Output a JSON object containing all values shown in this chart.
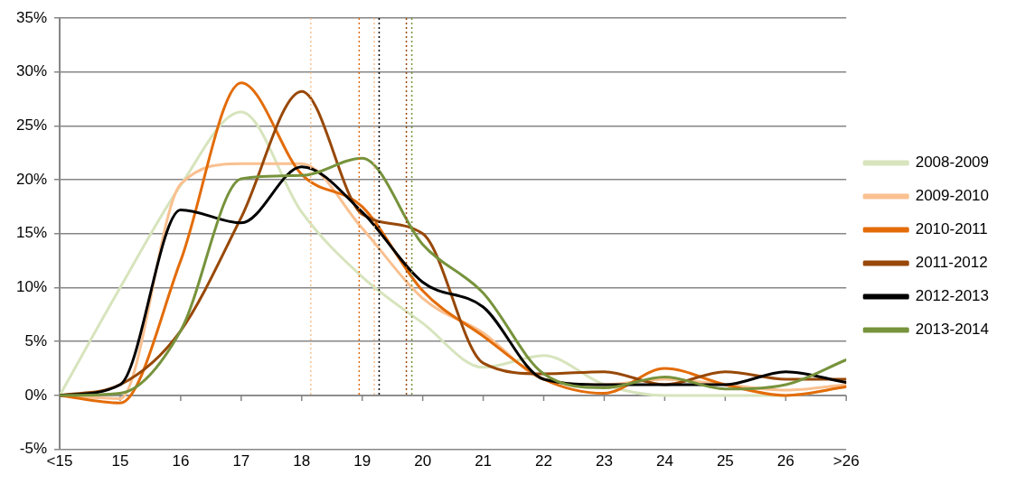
{
  "chart_data": {
    "type": "line",
    "x": [
      14,
      15,
      16,
      17,
      18,
      19,
      20,
      21,
      22,
      23,
      24,
      25,
      26,
      27
    ],
    "xlim": [
      14,
      27
    ],
    "xticks": [
      {
        "value": 14,
        "label": "<15"
      },
      15,
      16,
      17,
      18,
      19,
      20,
      21,
      22,
      23,
      24,
      25,
      26,
      {
        "value": 27,
        "label": ">26"
      }
    ],
    "ylim": [
      -5,
      35
    ],
    "yticks": [
      {
        "value": -5,
        "label": "-5%"
      },
      {
        "value": 0,
        "label": "0%"
      },
      {
        "value": 5,
        "label": "5%"
      },
      {
        "value": 10,
        "label": "10%"
      },
      {
        "value": 15,
        "label": "15%"
      },
      {
        "value": 20,
        "label": "20%"
      },
      {
        "value": 25,
        "label": "25%"
      },
      {
        "value": 30,
        "label": "30%"
      },
      {
        "value": 35,
        "label": "35%"
      }
    ],
    "grid": "y",
    "legend": "right",
    "marker": "none",
    "line_style": "solid",
    "series": [
      {
        "name": "2008-2009",
        "color": "#d7e4bd",
        "values": [
          0,
          10,
          19.5,
          26.3,
          17,
          11,
          6.7,
          2.6,
          3.7,
          1,
          0,
          0,
          0,
          0.8
        ]
      },
      {
        "name": "2009-2010",
        "color": "#fac090",
        "values": [
          0,
          -0.3,
          19.6,
          21.5,
          21.5,
          15.5,
          9,
          5.8,
          1.5,
          1,
          1.5,
          1,
          0.5,
          1
        ]
      },
      {
        "name": "2010-2011",
        "color": "#e36c09",
        "values": [
          0,
          -0.7,
          12.5,
          29,
          20.5,
          17.5,
          9.7,
          5.5,
          1.5,
          0.2,
          2.5,
          1,
          0,
          0.8
        ]
      },
      {
        "name": "2011-2012",
        "color": "#984807",
        "values": [
          0,
          1,
          6,
          16.5,
          28.2,
          16.8,
          15,
          3,
          2,
          2.2,
          1,
          2.2,
          1.5,
          1.5
        ]
      },
      {
        "name": "2012-2013",
        "color": "#000000",
        "values": [
          0,
          1,
          17.2,
          16,
          21.2,
          17,
          10.5,
          8.2,
          1.5,
          1,
          1,
          1,
          2.2,
          1.2
        ]
      },
      {
        "name": "2013-2014",
        "color": "#77933c",
        "values": [
          0,
          0.2,
          6,
          20.1,
          20.4,
          22,
          14,
          9.5,
          2,
          0.7,
          1.7,
          0.6,
          1,
          3.3
        ]
      }
    ],
    "ref_lines": [
      {
        "axis": "x",
        "value": 18.15,
        "color": "#fbc08e",
        "line_style": "dotted"
      },
      {
        "axis": "x",
        "value": 18.95,
        "color": "#e36c09",
        "line_style": "dotted"
      },
      {
        "axis": "x",
        "value": 19.2,
        "color": "#fac090",
        "line_style": "dotted"
      },
      {
        "axis": "x",
        "value": 19.28,
        "color": "#000000",
        "line_style": "dotted"
      },
      {
        "axis": "x",
        "value": 19.73,
        "color": "#984807",
        "line_style": "dotted"
      },
      {
        "axis": "x",
        "value": 19.82,
        "color": "#77933c",
        "line_style": "dotted"
      }
    ]
  }
}
